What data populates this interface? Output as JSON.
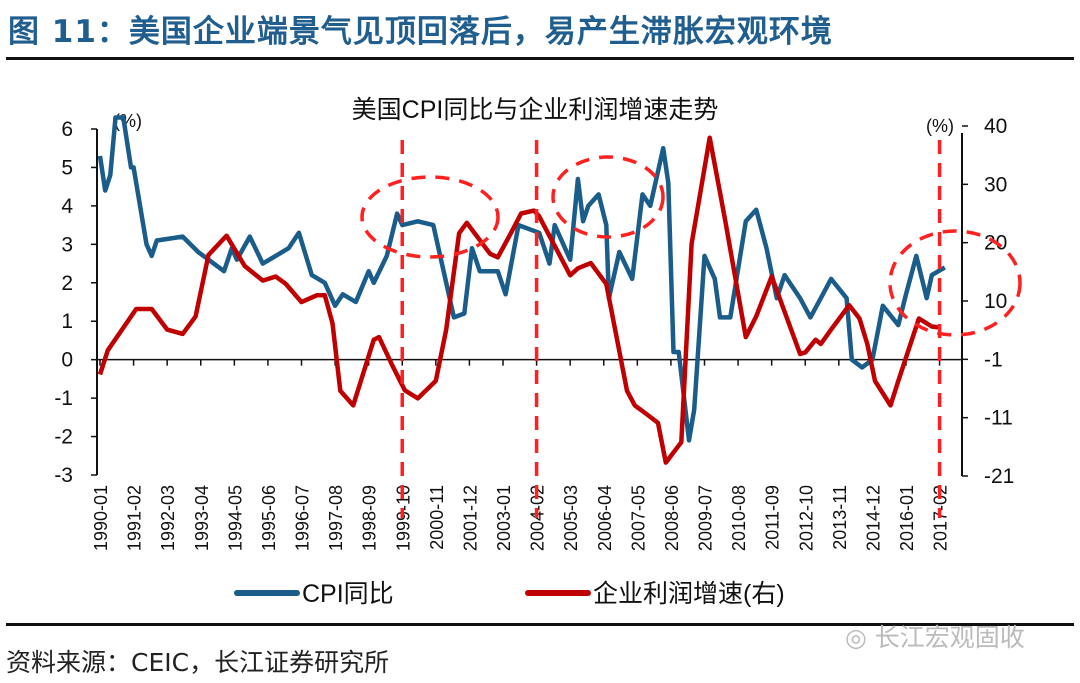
{
  "figure_title": "图 11：美国企业端景气见顶回落后，易产生滞胀宏观环境",
  "source": "资料来源：CEIC，长江证券研究所",
  "watermark": "长江宏观固收",
  "watermark_icon": "wechat-icon",
  "colors": {
    "title": "#1f5e8e",
    "cpi": "#1a5c8a",
    "profit": "#c00000",
    "annotation": "#ff2020"
  },
  "chart_data": {
    "type": "line",
    "title": "美国CPI同比与企业利润增速走势",
    "left_unit": "(%)",
    "right_unit": "(%)",
    "y_left_ticks": [
      6,
      5,
      4,
      3,
      2,
      1,
      0,
      -1,
      -2,
      -3
    ],
    "y_left_range": [
      -3,
      6
    ],
    "y_right_ticks": [
      40,
      30,
      20,
      10,
      -1,
      -11,
      -21
    ],
    "y_right_range": [
      -21,
      40
    ],
    "x_tick_labels": [
      "1990-01",
      "1991-02",
      "1992-03",
      "1993-04",
      "1994-05",
      "1995-06",
      "1996-07",
      "1997-08",
      "1998-09",
      "1999-10",
      "2000-11",
      "2001-12",
      "2003-01",
      "2004-02",
      "2005-03",
      "2006-04",
      "2007-05",
      "2008-06",
      "2009-07",
      "2010-08",
      "2011-09",
      "2012-10",
      "2013-11",
      "2014-12",
      "2016-01",
      "2017-02"
    ],
    "grid": false,
    "legend_position": "bottom",
    "highlight_dates": [
      "1999-10",
      "2004-02",
      "2017-02"
    ],
    "series": [
      {
        "name": "CPI同比",
        "axis": "left",
        "points": [
          [
            "1990-01",
            5.3
          ],
          [
            "1990-03",
            4.4
          ],
          [
            "1990-05",
            4.8
          ],
          [
            "1990-07",
            6.3
          ],
          [
            "1990-10",
            6.3
          ],
          [
            "1991-01",
            5.0
          ],
          [
            "1991-02",
            5.0
          ],
          [
            "1991-07",
            3.0
          ],
          [
            "1991-09",
            2.7
          ],
          [
            "1991-11",
            3.1
          ],
          [
            "1992-09",
            3.2
          ],
          [
            "1993-03",
            2.8
          ],
          [
            "1994-01",
            2.3
          ],
          [
            "1994-04",
            2.9
          ],
          [
            "1994-06",
            2.6
          ],
          [
            "1994-11",
            3.2
          ],
          [
            "1995-04",
            2.5
          ],
          [
            "1995-09",
            2.7
          ],
          [
            "1996-02",
            2.9
          ],
          [
            "1996-06",
            3.3
          ],
          [
            "1996-11",
            2.2
          ],
          [
            "1997-04",
            2.0
          ],
          [
            "1997-08",
            1.4
          ],
          [
            "1997-11",
            1.7
          ],
          [
            "1998-04",
            1.5
          ],
          [
            "1998-09",
            2.3
          ],
          [
            "1998-11",
            2.0
          ],
          [
            "1999-04",
            2.7
          ],
          [
            "1999-08",
            3.8
          ],
          [
            "1999-10",
            3.5
          ],
          [
            "2000-04",
            3.6
          ],
          [
            "2000-10",
            3.5
          ],
          [
            "2001-03",
            2.0
          ],
          [
            "2001-06",
            1.1
          ],
          [
            "2001-10",
            1.2
          ],
          [
            "2002-01",
            2.9
          ],
          [
            "2002-04",
            2.3
          ],
          [
            "2002-11",
            2.3
          ],
          [
            "2003-02",
            1.7
          ],
          [
            "2003-07",
            3.5
          ],
          [
            "2004-03",
            3.3
          ],
          [
            "2004-07",
            2.5
          ],
          [
            "2004-09",
            3.5
          ],
          [
            "2005-03",
            2.6
          ],
          [
            "2005-06",
            4.7
          ],
          [
            "2005-08",
            3.6
          ],
          [
            "2005-10",
            4.0
          ],
          [
            "2006-02",
            4.3
          ],
          [
            "2006-05",
            3.5
          ],
          [
            "2006-06",
            1.6
          ],
          [
            "2006-10",
            2.8
          ],
          [
            "2007-03",
            2.1
          ],
          [
            "2007-07",
            4.3
          ],
          [
            "2007-10",
            4.0
          ],
          [
            "2008-03",
            5.5
          ],
          [
            "2008-05",
            4.6
          ],
          [
            "2008-07",
            0.2
          ],
          [
            "2008-09",
            0.2
          ],
          [
            "2009-01",
            -2.1
          ],
          [
            "2009-03",
            -1.3
          ],
          [
            "2009-07",
            2.7
          ],
          [
            "2009-11",
            2.1
          ],
          [
            "2010-01",
            1.1
          ],
          [
            "2010-05",
            1.1
          ],
          [
            "2010-11",
            3.6
          ],
          [
            "2011-03",
            3.9
          ],
          [
            "2011-07",
            2.9
          ],
          [
            "2011-11",
            1.6
          ],
          [
            "2012-02",
            2.2
          ],
          [
            "2012-08",
            1.6
          ],
          [
            "2012-12",
            1.1
          ],
          [
            "2013-04",
            1.6
          ],
          [
            "2013-08",
            2.1
          ],
          [
            "2014-02",
            1.6
          ],
          [
            "2014-04",
            0.0
          ],
          [
            "2014-08",
            -0.2
          ],
          [
            "2014-12",
            0.0
          ],
          [
            "2015-04",
            1.4
          ],
          [
            "2015-10",
            0.9
          ],
          [
            "2016-01",
            1.7
          ],
          [
            "2016-05",
            2.7
          ],
          [
            "2016-09",
            1.6
          ],
          [
            "2016-11",
            2.2
          ],
          [
            "2017-04",
            2.4
          ]
        ]
      },
      {
        "name": "企业利润增速(右)",
        "axis": "right",
        "points": [
          [
            "1990-01",
            -3.6
          ],
          [
            "1990-04",
            0.7
          ],
          [
            "1991-03",
            8.5
          ],
          [
            "1991-09",
            8.5
          ],
          [
            "1992-03",
            4.6
          ],
          [
            "1992-09",
            3.8
          ],
          [
            "1993-02",
            7.1
          ],
          [
            "1993-07",
            17.9
          ],
          [
            "1994-02",
            21.2
          ],
          [
            "1994-09",
            16.0
          ],
          [
            "1995-04",
            13.5
          ],
          [
            "1995-09",
            14.2
          ],
          [
            "1996-01",
            12.9
          ],
          [
            "1996-07",
            9.8
          ],
          [
            "1997-01",
            11.0
          ],
          [
            "1997-04",
            11.0
          ],
          [
            "1997-07",
            5.8
          ],
          [
            "1997-10",
            -6.4
          ],
          [
            "1998-03",
            -8.9
          ],
          [
            "1998-11",
            2.7
          ],
          [
            "1999-01",
            3.2
          ],
          [
            "1999-06",
            -1.9
          ],
          [
            "1999-11",
            -6.3
          ],
          [
            "2000-04",
            -7.7
          ],
          [
            "2000-11",
            -4.7
          ],
          [
            "2001-03",
            4.6
          ],
          [
            "2001-08",
            21.6
          ],
          [
            "2001-11",
            23.4
          ],
          [
            "2002-08",
            18.1
          ],
          [
            "2002-11",
            17.5
          ],
          [
            "2003-04",
            21.6
          ],
          [
            "2003-08",
            25.0
          ],
          [
            "2004-01",
            25.5
          ],
          [
            "2004-03",
            24.5
          ],
          [
            "2005-03",
            14.4
          ],
          [
            "2005-06",
            15.6
          ],
          [
            "2005-11",
            16.5
          ],
          [
            "2006-05",
            12.9
          ],
          [
            "2007-01",
            -6.4
          ],
          [
            "2007-04",
            -8.9
          ],
          [
            "2007-08",
            -10.2
          ],
          [
            "2008-01",
            -11.9
          ],
          [
            "2008-04",
            -18.7
          ],
          [
            "2008-10",
            -15.2
          ],
          [
            "2009-02",
            19.8
          ],
          [
            "2009-09",
            38.0
          ],
          [
            "2010-01",
            28.6
          ],
          [
            "2010-03",
            23.8
          ],
          [
            "2010-11",
            3.2
          ],
          [
            "2011-03",
            7.1
          ],
          [
            "2011-09",
            14.2
          ],
          [
            "2012-08",
            0.0
          ],
          [
            "2012-10",
            0.3
          ],
          [
            "2013-02",
            2.7
          ],
          [
            "2013-04",
            1.9
          ],
          [
            "2013-08",
            4.6
          ],
          [
            "2014-03",
            9.2
          ],
          [
            "2014-07",
            6.7
          ],
          [
            "2014-10",
            1.9
          ],
          [
            "2015-01",
            -4.7
          ],
          [
            "2015-07",
            -8.9
          ],
          [
            "2015-10",
            -4.7
          ],
          [
            "2016-06",
            6.7
          ],
          [
            "2016-11",
            5.2
          ],
          [
            "2017-02",
            5.0
          ]
        ]
      }
    ]
  }
}
